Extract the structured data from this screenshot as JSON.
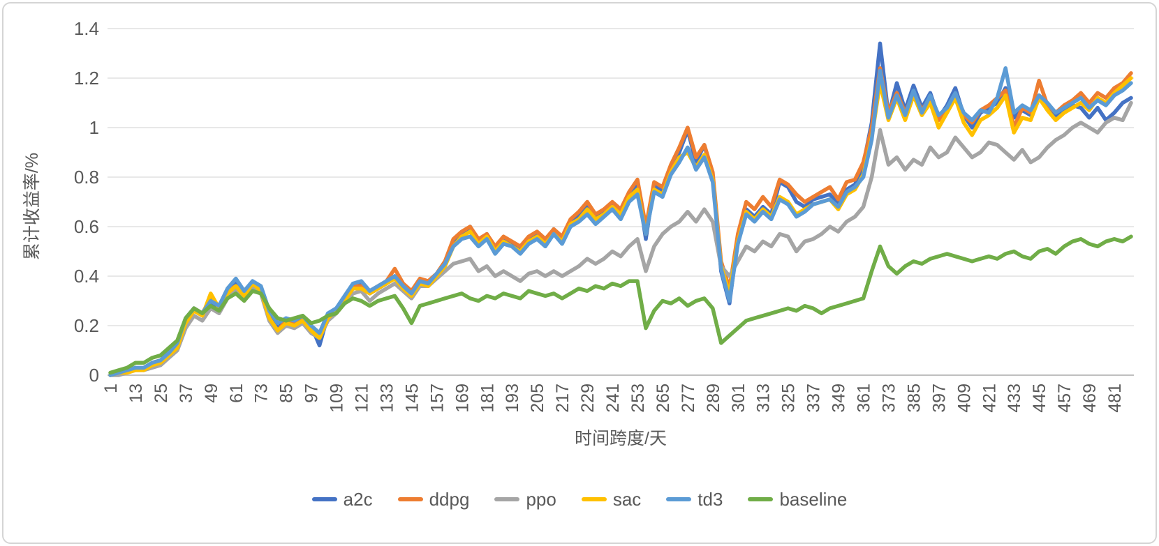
{
  "chart_data": {
    "type": "line",
    "title": "",
    "xlabel": "时间跨度/天",
    "ylabel": "累计收益率/%",
    "grid": true,
    "grid_color": "#D9D9D9",
    "axis_line_color": "#BFBFBF",
    "text_color": "#595959",
    "legend_position": "bottom",
    "ylim": [
      0,
      1.4
    ],
    "y_tick_labels": [
      "0",
      "0.2",
      "0.4",
      "0.6",
      "0.8",
      "1",
      "1.2",
      "1.4"
    ],
    "x_tick_start": 1,
    "x_tick_step": 12,
    "x_tick_labels": [
      "1",
      "13",
      "25",
      "37",
      "49",
      "61",
      "73",
      "85",
      "97",
      "109",
      "121",
      "133",
      "145",
      "157",
      "169",
      "181",
      "193",
      "205",
      "217",
      "229",
      "241",
      "253",
      "265",
      "277",
      "289",
      "301",
      "313",
      "325",
      "337",
      "349",
      "361",
      "373",
      "385",
      "397",
      "409",
      "421",
      "433",
      "445",
      "457",
      "469",
      "481"
    ],
    "x_start": 1,
    "x_step": 4,
    "x_max": 489,
    "series": [
      {
        "name": "a2c",
        "color": "#4472C4",
        "values": [
          0.0,
          0.01,
          0.02,
          0.03,
          0.02,
          0.05,
          0.06,
          0.09,
          0.12,
          0.22,
          0.27,
          0.24,
          0.3,
          0.27,
          0.34,
          0.37,
          0.33,
          0.38,
          0.35,
          0.24,
          0.19,
          0.22,
          0.2,
          0.23,
          0.2,
          0.12,
          0.24,
          0.27,
          0.31,
          0.36,
          0.37,
          0.33,
          0.35,
          0.37,
          0.4,
          0.36,
          0.33,
          0.38,
          0.36,
          0.4,
          0.45,
          0.53,
          0.57,
          0.6,
          0.54,
          0.57,
          0.51,
          0.55,
          0.53,
          0.51,
          0.55,
          0.57,
          0.54,
          0.59,
          0.55,
          0.62,
          0.64,
          0.68,
          0.64,
          0.66,
          0.69,
          0.66,
          0.73,
          0.77,
          0.55,
          0.77,
          0.74,
          0.84,
          0.9,
          0.99,
          0.86,
          0.93,
          0.8,
          0.42,
          0.29,
          0.55,
          0.67,
          0.64,
          0.68,
          0.65,
          0.78,
          0.76,
          0.7,
          0.68,
          0.71,
          0.72,
          0.73,
          0.69,
          0.75,
          0.77,
          0.85,
          1.02,
          1.34,
          1.05,
          1.18,
          1.07,
          1.17,
          1.08,
          1.14,
          1.04,
          1.09,
          1.16,
          1.05,
          1.0,
          1.06,
          1.08,
          1.1,
          1.16,
          1.04,
          1.07,
          1.05,
          1.13,
          1.09,
          1.04,
          1.07,
          1.09,
          1.08,
          1.04,
          1.08,
          1.03,
          1.06,
          1.1,
          1.12
        ]
      },
      {
        "name": "ddpg",
        "color": "#ED7D31",
        "values": [
          0.0,
          0.01,
          0.02,
          0.02,
          0.03,
          0.05,
          0.06,
          0.09,
          0.12,
          0.21,
          0.27,
          0.25,
          0.31,
          0.28,
          0.34,
          0.36,
          0.33,
          0.37,
          0.34,
          0.23,
          0.18,
          0.22,
          0.21,
          0.23,
          0.19,
          0.16,
          0.24,
          0.26,
          0.31,
          0.36,
          0.36,
          0.34,
          0.36,
          0.38,
          0.43,
          0.37,
          0.34,
          0.39,
          0.38,
          0.41,
          0.46,
          0.55,
          0.58,
          0.6,
          0.55,
          0.57,
          0.52,
          0.56,
          0.54,
          0.52,
          0.56,
          0.58,
          0.55,
          0.59,
          0.56,
          0.63,
          0.66,
          0.7,
          0.65,
          0.67,
          0.7,
          0.67,
          0.74,
          0.79,
          0.6,
          0.78,
          0.76,
          0.85,
          0.92,
          1.0,
          0.88,
          0.93,
          0.82,
          0.46,
          0.35,
          0.57,
          0.7,
          0.67,
          0.72,
          0.68,
          0.79,
          0.77,
          0.73,
          0.7,
          0.72,
          0.74,
          0.76,
          0.71,
          0.78,
          0.79,
          0.86,
          1.0,
          1.24,
          1.06,
          1.14,
          1.06,
          1.14,
          1.07,
          1.12,
          1.03,
          1.08,
          1.13,
          1.05,
          1.02,
          1.07,
          1.09,
          1.12,
          1.15,
          1.0,
          1.08,
          1.06,
          1.19,
          1.09,
          1.06,
          1.09,
          1.11,
          1.14,
          1.1,
          1.14,
          1.12,
          1.16,
          1.18,
          1.22
        ]
      },
      {
        "name": "ppo",
        "color": "#A5A5A5",
        "values": [
          0.0,
          0.0,
          0.01,
          0.02,
          0.02,
          0.03,
          0.04,
          0.07,
          0.1,
          0.19,
          0.24,
          0.22,
          0.27,
          0.25,
          0.31,
          0.34,
          0.31,
          0.35,
          0.33,
          0.22,
          0.17,
          0.2,
          0.19,
          0.21,
          0.17,
          0.15,
          0.22,
          0.25,
          0.29,
          0.33,
          0.34,
          0.3,
          0.33,
          0.35,
          0.37,
          0.34,
          0.31,
          0.36,
          0.36,
          0.39,
          0.42,
          0.45,
          0.46,
          0.47,
          0.42,
          0.44,
          0.4,
          0.42,
          0.4,
          0.38,
          0.41,
          0.42,
          0.4,
          0.42,
          0.4,
          0.42,
          0.44,
          0.47,
          0.45,
          0.47,
          0.5,
          0.48,
          0.52,
          0.55,
          0.42,
          0.52,
          0.57,
          0.6,
          0.62,
          0.66,
          0.62,
          0.67,
          0.62,
          0.44,
          0.4,
          0.46,
          0.52,
          0.5,
          0.54,
          0.52,
          0.57,
          0.56,
          0.5,
          0.54,
          0.55,
          0.57,
          0.6,
          0.58,
          0.62,
          0.64,
          0.68,
          0.8,
          0.99,
          0.85,
          0.88,
          0.83,
          0.87,
          0.85,
          0.92,
          0.88,
          0.9,
          0.96,
          0.92,
          0.88,
          0.9,
          0.94,
          0.93,
          0.9,
          0.87,
          0.91,
          0.86,
          0.88,
          0.92,
          0.95,
          0.97,
          1.0,
          1.02,
          1.0,
          0.98,
          1.02,
          1.04,
          1.03,
          1.1
        ]
      },
      {
        "name": "sac",
        "color": "#FFC000",
        "values": [
          0.0,
          0.01,
          0.01,
          0.02,
          0.02,
          0.04,
          0.05,
          0.08,
          0.11,
          0.21,
          0.26,
          0.24,
          0.33,
          0.27,
          0.33,
          0.36,
          0.32,
          0.37,
          0.34,
          0.23,
          0.18,
          0.21,
          0.2,
          0.22,
          0.18,
          0.15,
          0.23,
          0.26,
          0.3,
          0.35,
          0.35,
          0.33,
          0.35,
          0.37,
          0.39,
          0.35,
          0.32,
          0.37,
          0.36,
          0.4,
          0.44,
          0.52,
          0.56,
          0.58,
          0.53,
          0.56,
          0.5,
          0.54,
          0.52,
          0.5,
          0.54,
          0.56,
          0.53,
          0.57,
          0.54,
          0.61,
          0.63,
          0.67,
          0.63,
          0.65,
          0.68,
          0.65,
          0.72,
          0.75,
          0.57,
          0.75,
          0.73,
          0.82,
          0.88,
          0.9,
          0.84,
          0.89,
          0.79,
          0.44,
          0.33,
          0.54,
          0.66,
          0.63,
          0.67,
          0.64,
          0.72,
          0.7,
          0.65,
          0.67,
          0.69,
          0.7,
          0.71,
          0.67,
          0.73,
          0.75,
          0.81,
          0.96,
          1.18,
          1.03,
          1.12,
          1.03,
          1.13,
          1.05,
          1.1,
          1.0,
          1.06,
          1.12,
          1.02,
          0.97,
          1.03,
          1.05,
          1.08,
          1.13,
          0.98,
          1.04,
          1.03,
          1.12,
          1.07,
          1.03,
          1.06,
          1.08,
          1.1,
          1.07,
          1.12,
          1.1,
          1.14,
          1.17,
          1.2
        ]
      },
      {
        "name": "td3",
        "color": "#5B9BD5",
        "values": [
          0.0,
          0.01,
          0.02,
          0.03,
          0.03,
          0.05,
          0.06,
          0.09,
          0.13,
          0.23,
          0.27,
          0.25,
          0.3,
          0.28,
          0.35,
          0.39,
          0.34,
          0.38,
          0.36,
          0.26,
          0.21,
          0.23,
          0.22,
          0.24,
          0.2,
          0.17,
          0.25,
          0.27,
          0.32,
          0.37,
          0.38,
          0.34,
          0.36,
          0.38,
          0.4,
          0.36,
          0.33,
          0.38,
          0.37,
          0.41,
          0.45,
          0.52,
          0.55,
          0.56,
          0.52,
          0.55,
          0.49,
          0.53,
          0.52,
          0.49,
          0.53,
          0.55,
          0.52,
          0.57,
          0.53,
          0.6,
          0.62,
          0.65,
          0.61,
          0.64,
          0.67,
          0.63,
          0.7,
          0.73,
          0.57,
          0.74,
          0.72,
          0.81,
          0.86,
          0.92,
          0.83,
          0.88,
          0.78,
          0.43,
          0.3,
          0.53,
          0.65,
          0.62,
          0.66,
          0.63,
          0.71,
          0.69,
          0.64,
          0.66,
          0.69,
          0.7,
          0.71,
          0.68,
          0.74,
          0.76,
          0.8,
          0.95,
          1.23,
          1.04,
          1.13,
          1.05,
          1.15,
          1.06,
          1.13,
          1.05,
          1.08,
          1.14,
          1.06,
          1.03,
          1.07,
          1.06,
          1.12,
          1.24,
          1.06,
          1.09,
          1.07,
          1.13,
          1.1,
          1.06,
          1.08,
          1.1,
          1.12,
          1.08,
          1.11,
          1.09,
          1.13,
          1.15,
          1.18
        ]
      },
      {
        "name": "baseline",
        "color": "#70AD47",
        "values": [
          0.01,
          0.02,
          0.03,
          0.05,
          0.05,
          0.07,
          0.08,
          0.11,
          0.14,
          0.23,
          0.27,
          0.25,
          0.28,
          0.26,
          0.31,
          0.33,
          0.3,
          0.34,
          0.33,
          0.27,
          0.23,
          0.22,
          0.23,
          0.24,
          0.21,
          0.22,
          0.24,
          0.25,
          0.29,
          0.31,
          0.3,
          0.28,
          0.3,
          0.31,
          0.32,
          0.27,
          0.21,
          0.28,
          0.29,
          0.3,
          0.31,
          0.32,
          0.33,
          0.31,
          0.3,
          0.32,
          0.31,
          0.33,
          0.32,
          0.31,
          0.34,
          0.33,
          0.32,
          0.33,
          0.31,
          0.33,
          0.35,
          0.34,
          0.36,
          0.35,
          0.37,
          0.36,
          0.38,
          0.38,
          0.19,
          0.26,
          0.3,
          0.29,
          0.31,
          0.28,
          0.3,
          0.31,
          0.27,
          0.13,
          0.16,
          0.19,
          0.22,
          0.23,
          0.24,
          0.25,
          0.26,
          0.27,
          0.26,
          0.28,
          0.27,
          0.25,
          0.27,
          0.28,
          0.29,
          0.3,
          0.31,
          0.42,
          0.52,
          0.44,
          0.41,
          0.44,
          0.46,
          0.45,
          0.47,
          0.48,
          0.49,
          0.48,
          0.47,
          0.46,
          0.47,
          0.48,
          0.47,
          0.49,
          0.5,
          0.48,
          0.47,
          0.5,
          0.51,
          0.49,
          0.52,
          0.54,
          0.55,
          0.53,
          0.52,
          0.54,
          0.55,
          0.54,
          0.56
        ]
      }
    ]
  }
}
